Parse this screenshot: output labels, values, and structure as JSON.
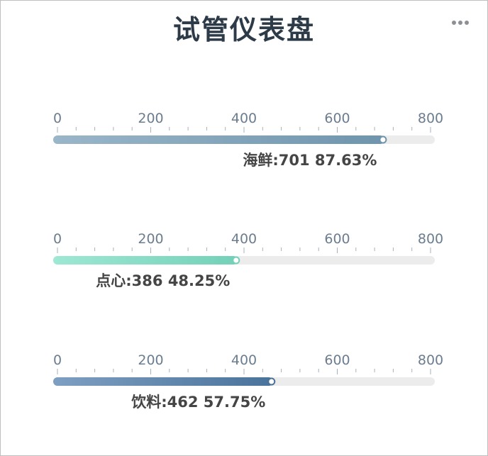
{
  "header": {
    "title": "试管仪表盘",
    "menu_icon": "more-horizontal-icon"
  },
  "chart_data": {
    "type": "bar",
    "orientation": "horizontal",
    "style": "thermometer-gauge",
    "title": "试管仪表盘",
    "axis": {
      "min": 0,
      "max": 800,
      "major_ticks": [
        0,
        200,
        400,
        600,
        800
      ],
      "minor_step": 40
    },
    "total": 800,
    "series": [
      {
        "name": "海鲜",
        "value": 701,
        "percent": "87.63%",
        "label": "海鲜:701 87.63%",
        "color_start": "#9ab6c9",
        "color_end": "#6e95ad"
      },
      {
        "name": "点心",
        "value": 386,
        "percent": "48.25%",
        "label": "点心:386 48.25%",
        "color_start": "#9ee8d4",
        "color_end": "#74d0b8"
      },
      {
        "name": "饮料",
        "value": 462,
        "percent": "57.75%",
        "label": "饮料:462 57.75%",
        "color_start": "#7e9fc1",
        "color_end": "#4a739b"
      }
    ],
    "track_color": "#ececec",
    "grid": false,
    "legend": "none"
  }
}
